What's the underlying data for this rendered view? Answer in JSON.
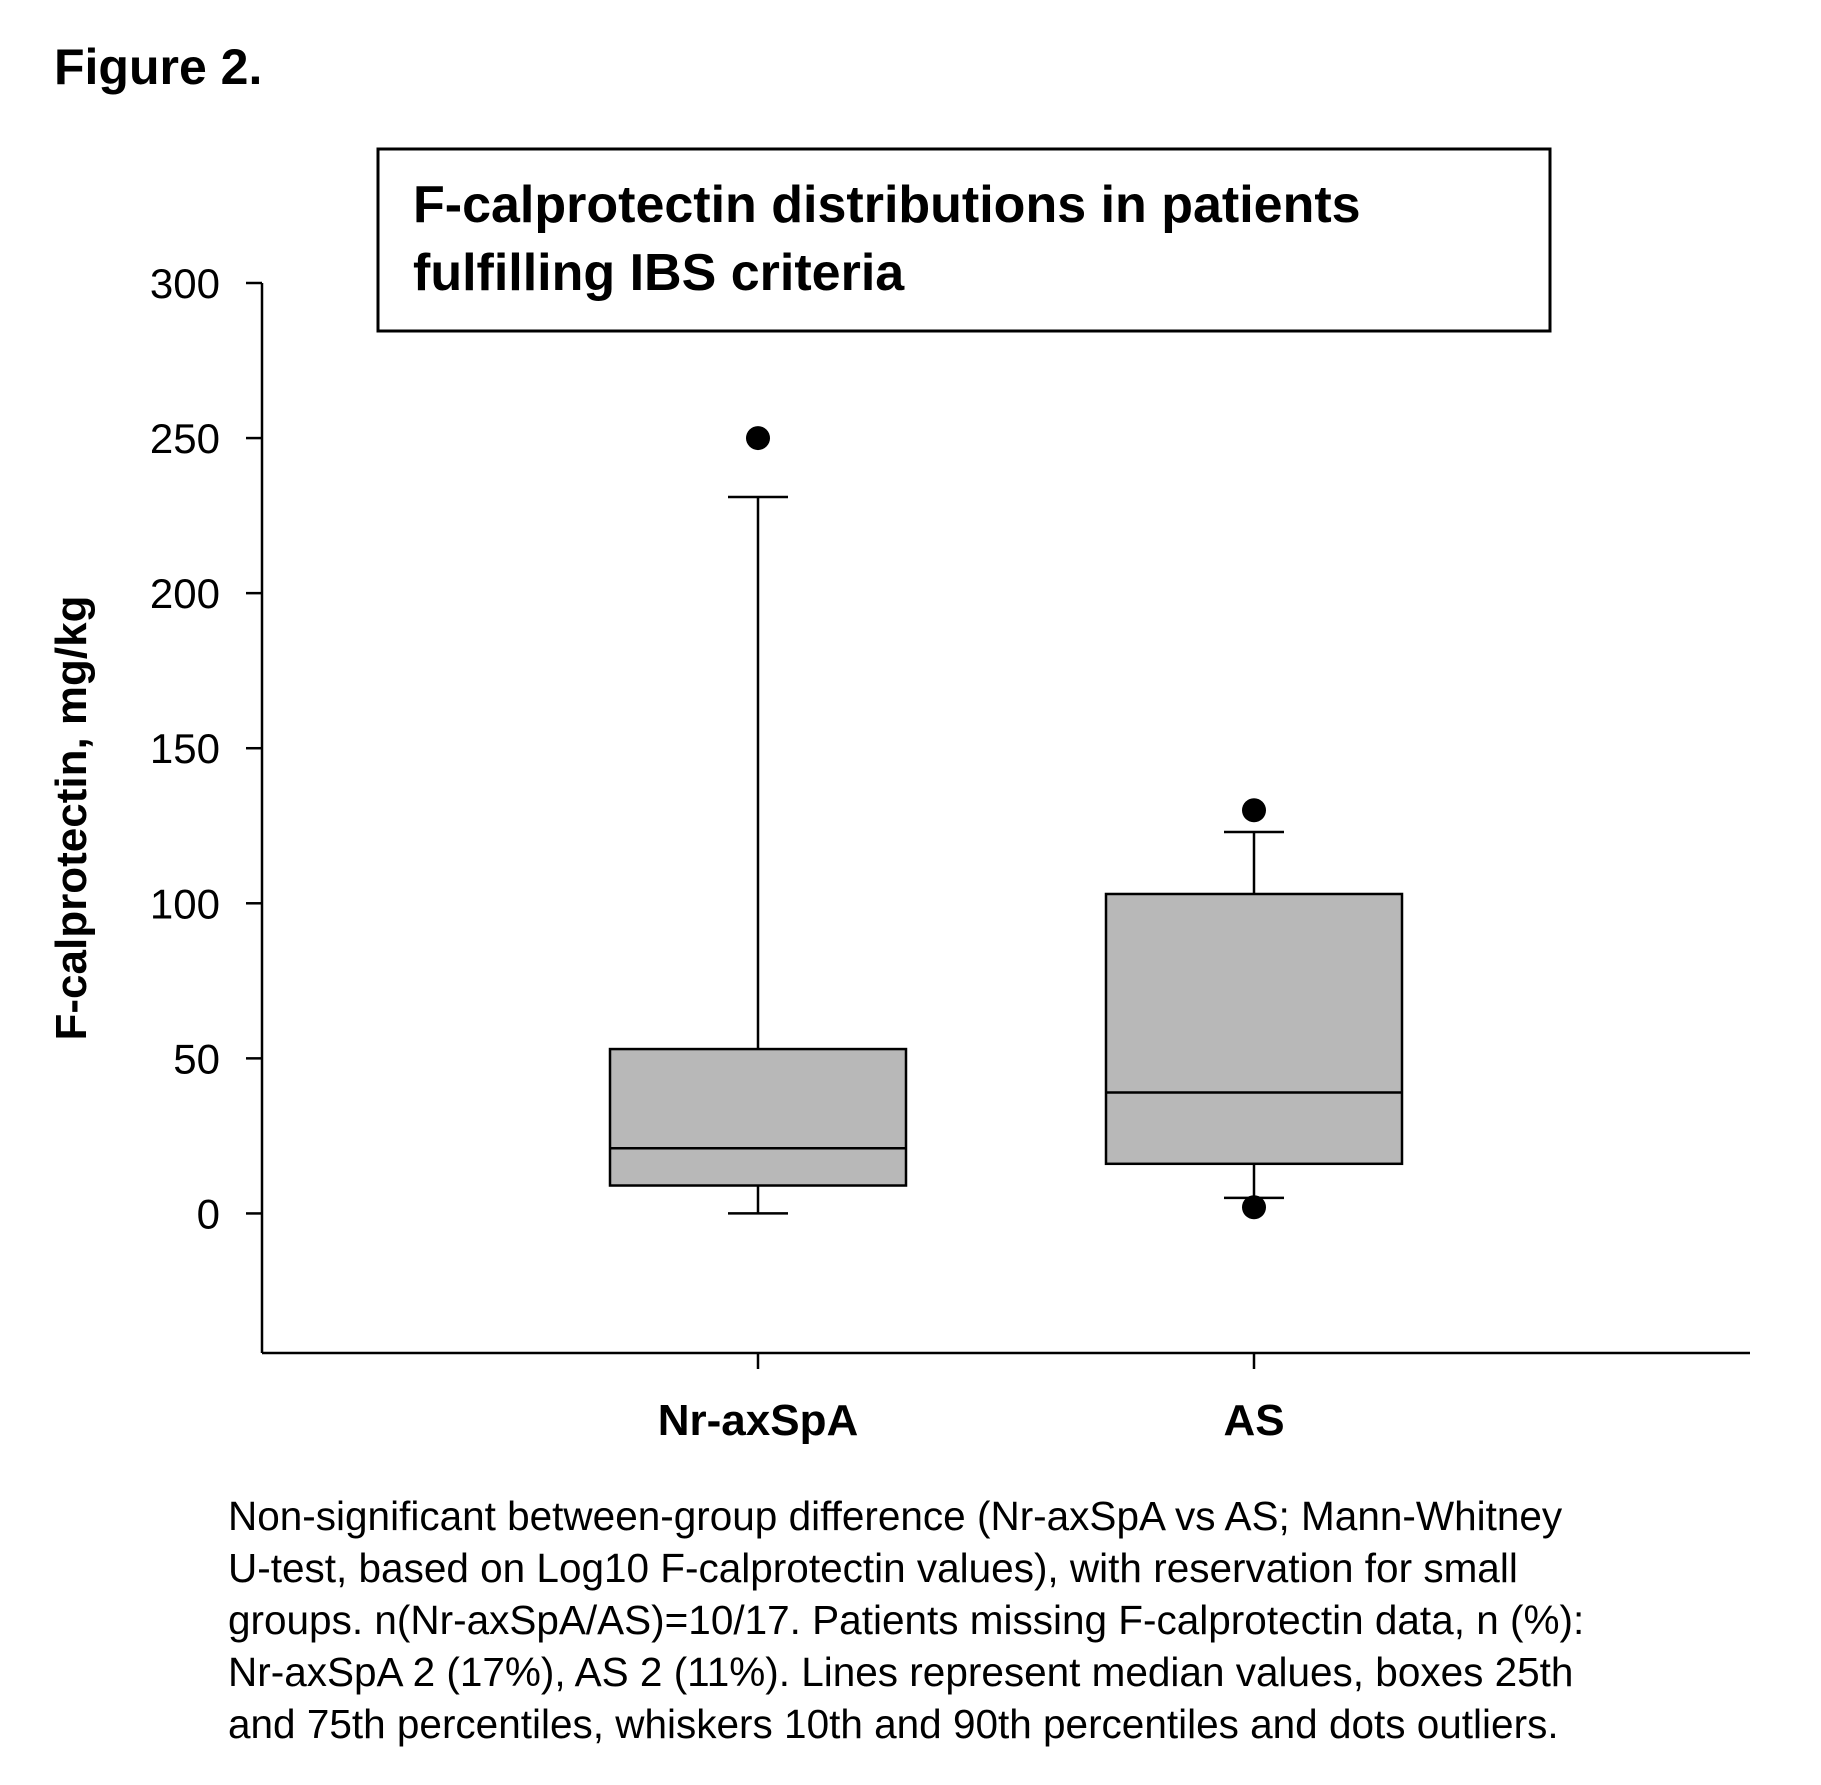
{
  "figure_label": "Figure 2.",
  "chart_data": {
    "type": "box",
    "title_lines": [
      "F-calprotectin distributions in patients",
      "fulfilling IBS criteria"
    ],
    "ylabel": "F-calprotectin, mg/kg",
    "xlabel": "",
    "ylim": [
      -45,
      300
    ],
    "yticks": [
      0,
      50,
      100,
      150,
      200,
      250,
      300
    ],
    "ytick_labels": [
      "0",
      "50",
      "100",
      "150",
      "200",
      "250",
      "300"
    ],
    "categories": [
      "Nr-axSpA",
      "AS"
    ],
    "box_color": "#b8b8b8",
    "grid": false,
    "series": [
      {
        "whisker_low": 0,
        "q1": 9,
        "median": 21,
        "q3": 53,
        "whisker_high": 231,
        "outliers": [
          250
        ]
      },
      {
        "whisker_low": 5,
        "q1": 16,
        "median": 39,
        "q3": 103,
        "whisker_high": 123,
        "outliers": [
          130,
          2
        ]
      }
    ]
  },
  "caption_lines": [
    "Non-significant between-group difference (Nr-axSpA vs AS; Mann-Whitney",
    "U-test, based on Log10 F-calprotectin values), with reservation for small",
    "groups. n(Nr-axSpA/AS)=10/17. Patients missing F-calprotectin data, n (%):",
    "Nr-axSpA 2 (17%), AS 2 (11%). Lines represent median values, boxes 25th",
    "and 75th percentiles, whiskers 10th and 90th percentiles and dots outliers."
  ]
}
